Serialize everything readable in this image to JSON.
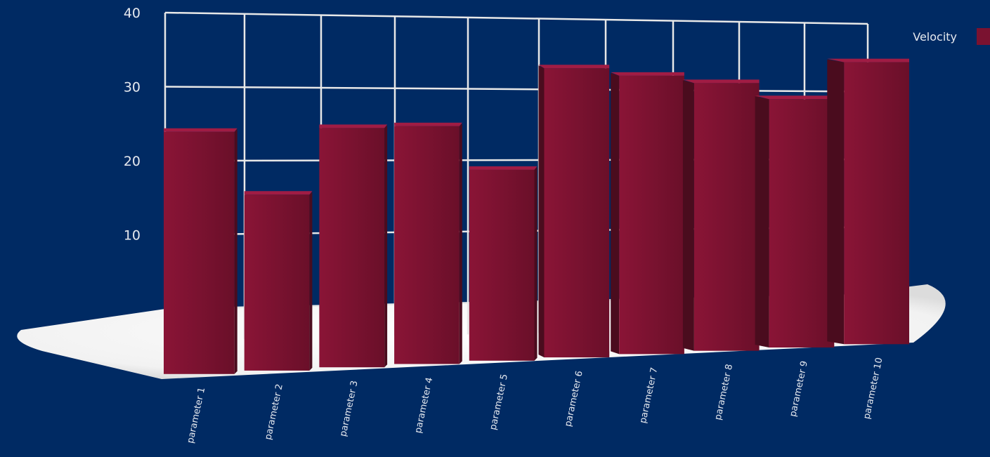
{
  "chart_data": {
    "type": "bar",
    "three_d": true,
    "categories": [
      "parameter 1",
      "parameter 2",
      "parameter 3",
      "parameter 4",
      "parameter 5",
      "parameter 6",
      "parameter 7",
      "parameter 8",
      "parameter 9",
      "parameter 10"
    ],
    "series": [
      {
        "name": "Velocity",
        "values": [
          26,
          19,
          26,
          26,
          21,
          32,
          31,
          30,
          28,
          32
        ]
      }
    ],
    "ylim": [
      0,
      40
    ],
    "yticks": [
      "10",
      "20",
      "30",
      "40"
    ],
    "grid": true,
    "legend_position": "top-right",
    "colors": {
      "background": "#002a63",
      "bar": "#7a1230",
      "bar_top": "#a01c44",
      "bar_side": "#4a0c1e",
      "grid": "#e8e8e8",
      "floor": "#ffffff"
    }
  }
}
